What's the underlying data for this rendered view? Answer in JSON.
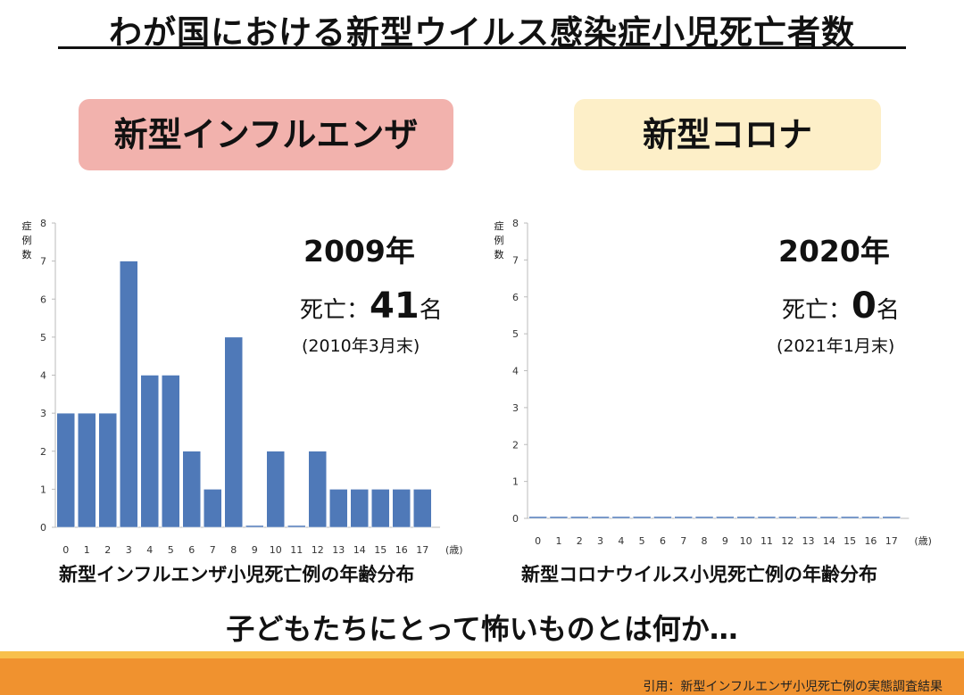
{
  "title": "わが国における新型ウイルス感染症小児死亡者数",
  "panels": {
    "flu": {
      "label": "新型インフルエンザ",
      "year": "2009年",
      "deaths_prefix": "死亡：",
      "deaths_value": "41",
      "deaths_unit": "名",
      "as_of": "(2010年3月末)",
      "caption": "新型インフルエンザ小児死亡例の年齢分布"
    },
    "covid": {
      "label": "新型コロナ",
      "year": "2020年",
      "deaths_prefix": "死亡：",
      "deaths_value": "0",
      "deaths_unit": "名",
      "as_of": "(2021年1月末)",
      "caption": "新型コロナウイルス小児死亡例の年齢分布"
    }
  },
  "question": "子どもたちにとって怖いものとは何か…",
  "citation": "引用：新型インフルエンザ小児死亡例の実態調査結果",
  "colors": {
    "bar": "#4f79b8",
    "flu_box": "#f2b2ad",
    "covid_box": "#fdefc8",
    "footer": "#f0922f"
  },
  "chart_data": [
    {
      "type": "bar",
      "categories": [
        "0",
        "1",
        "2",
        "3",
        "4",
        "5",
        "6",
        "7",
        "8",
        "9",
        "10",
        "11",
        "12",
        "13",
        "14",
        "15",
        "16",
        "17"
      ],
      "values": [
        3,
        3,
        3,
        7,
        4,
        4,
        2,
        1,
        5,
        0,
        2,
        0,
        2,
        1,
        1,
        1,
        1,
        1
      ],
      "ylabel": "症例数",
      "xunit": "(歳)",
      "ylim": [
        0,
        8
      ],
      "yticks": [
        0,
        1,
        2,
        3,
        4,
        5,
        6,
        7,
        8
      ],
      "grid": false
    },
    {
      "type": "bar",
      "categories": [
        "0",
        "1",
        "2",
        "3",
        "4",
        "5",
        "6",
        "7",
        "8",
        "9",
        "10",
        "11",
        "12",
        "13",
        "14",
        "15",
        "16",
        "17"
      ],
      "values": [
        0,
        0,
        0,
        0,
        0,
        0,
        0,
        0,
        0,
        0,
        0,
        0,
        0,
        0,
        0,
        0,
        0,
        0
      ],
      "ylabel": "症例数",
      "xunit": "(歳)",
      "ylim": [
        0,
        8
      ],
      "yticks": [
        0,
        1,
        2,
        3,
        4,
        5,
        6,
        7,
        8
      ],
      "grid": false
    }
  ]
}
